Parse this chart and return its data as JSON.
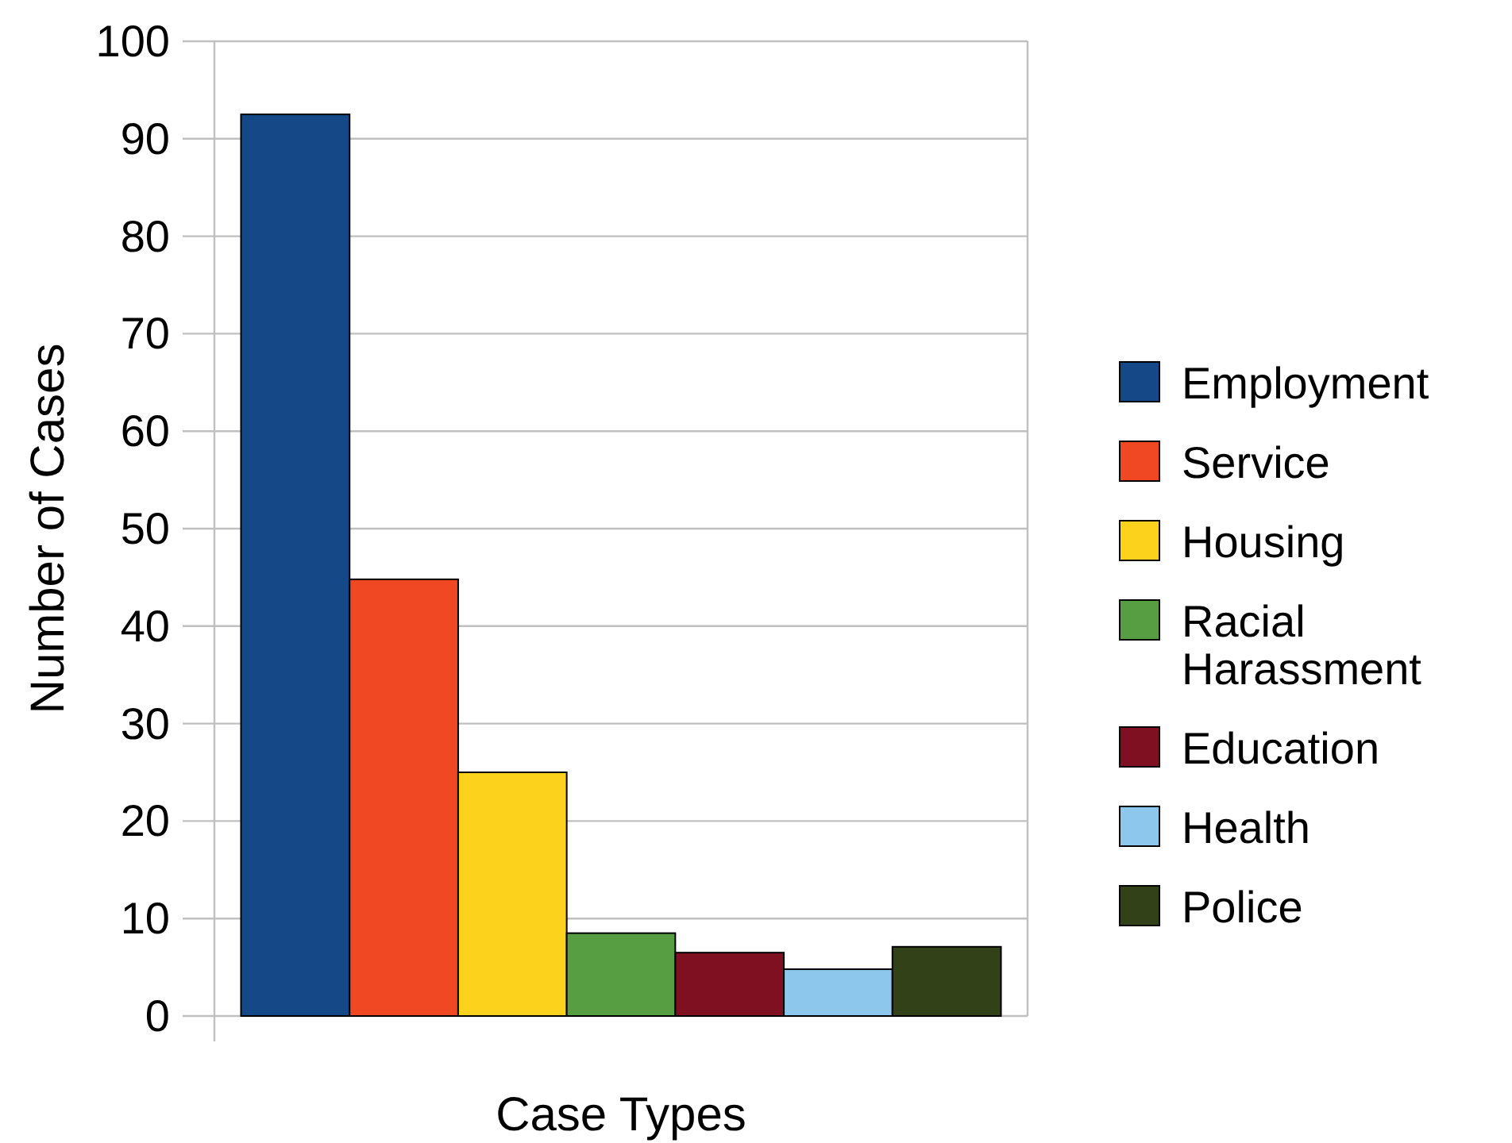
{
  "chart_data": {
    "type": "bar",
    "xlabel": "Case Types",
    "ylabel": "Number of Cases",
    "categories": [
      null
    ],
    "series": [
      {
        "name": "Employment",
        "color": "#144886",
        "values": [
          92.5
        ]
      },
      {
        "name": "Service",
        "color": "#f04822",
        "values": [
          44.8
        ]
      },
      {
        "name": "Housing",
        "color": "#fcd21c",
        "values": [
          25
        ]
      },
      {
        "name": "Racial Harassment",
        "color": "#579d42",
        "values": [
          8.5
        ]
      },
      {
        "name": "Education",
        "color": "#7e1022",
        "values": [
          6.5
        ]
      },
      {
        "name": "Health",
        "color": "#8dc8ec",
        "values": [
          4.8
        ]
      },
      {
        "name": "Police",
        "color": "#334119",
        "values": [
          7.1
        ]
      }
    ],
    "ylim": [
      0,
      100
    ],
    "yticks": [
      0,
      10,
      20,
      30,
      40,
      50,
      60,
      70,
      80,
      90,
      100
    ],
    "grid": "y",
    "legend": "right"
  }
}
